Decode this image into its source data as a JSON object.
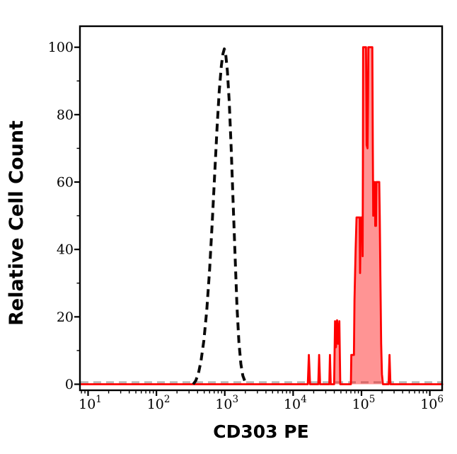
{
  "figure": {
    "background": "#ffffff",
    "x_axis": {
      "scale": "log10",
      "tick_base": "10",
      "major_tick_exponents": [
        1,
        2,
        3,
        4,
        5,
        6
      ],
      "minor_ticks": "2-9 per decade",
      "visible_range_exponents": [
        0.88,
        6.18
      ]
    },
    "y_axis": {
      "major_ticks": [
        0,
        20,
        40,
        60,
        80,
        100
      ],
      "minor_ticks": [
        10,
        30,
        50,
        70,
        90
      ]
    },
    "colors": {
      "axis": "#000000",
      "sample_stroke": "#ff0000",
      "sample_fill": "rgba(255,0,0,0.42)",
      "control_stroke": "#0a0a0a",
      "baseline_dash": "#b8b8b8"
    }
  },
  "chart_data": {
    "type": "area",
    "title": "",
    "xlabel": "CD303 PE",
    "ylabel": "Relative Cell Count",
    "x_scale": "log10",
    "xlim": [
      8,
      1520000
    ],
    "ylim": [
      0,
      100
    ],
    "grid": false,
    "legend": false,
    "series": [
      {
        "name": "cd303-pe-stained-sample",
        "description": "red solid line with light red fill, spiky positive population",
        "style": "solid-filled",
        "stroke": "#ff0000",
        "fill": "rgba(255,0,0,0.42)",
        "points": [
          [
            8,
            0
          ],
          [
            16400,
            0
          ],
          [
            17000,
            8.7
          ],
          [
            17700,
            0
          ],
          [
            23300,
            0
          ],
          [
            24000,
            8.7
          ],
          [
            24800,
            0
          ],
          [
            33800,
            0
          ],
          [
            34600,
            8.7
          ],
          [
            35500,
            0
          ],
          [
            39800,
            0
          ],
          [
            41000,
            18.7
          ],
          [
            42300,
            11
          ],
          [
            44000,
            19
          ],
          [
            45500,
            12
          ],
          [
            47500,
            18.7
          ],
          [
            49000,
            0
          ],
          [
            70000,
            0
          ],
          [
            71000,
            8.7
          ],
          [
            77500,
            8.7
          ],
          [
            79000,
            25
          ],
          [
            82000,
            40
          ],
          [
            84700,
            49.5
          ],
          [
            94000,
            49.5
          ],
          [
            95500,
            33
          ],
          [
            97700,
            49.5
          ],
          [
            102500,
            49.5
          ],
          [
            104000,
            38
          ],
          [
            105000,
            65
          ],
          [
            105700,
            100
          ],
          [
            116500,
            100
          ],
          [
            118000,
            85
          ],
          [
            119100,
            71
          ],
          [
            122500,
            70
          ],
          [
            124500,
            85
          ],
          [
            126000,
            100
          ],
          [
            144000,
            100
          ],
          [
            146500,
            70
          ],
          [
            148500,
            50
          ],
          [
            151400,
            60
          ],
          [
            157000,
            60
          ],
          [
            159000,
            47
          ],
          [
            163000,
            47
          ],
          [
            165500,
            60
          ],
          [
            181900,
            60
          ],
          [
            185000,
            50
          ],
          [
            189000,
            32
          ],
          [
            194000,
            12
          ],
          [
            199000,
            3
          ],
          [
            206000,
            0
          ],
          [
            249000,
            0
          ],
          [
            257000,
            8.7
          ],
          [
            265000,
            0
          ],
          [
            1520000,
            0
          ]
        ]
      },
      {
        "name": "control-dashed",
        "description": "black dashed bell-shaped negative control around 10^3",
        "style": "dashed",
        "stroke": "#0a0a0a",
        "fill": "none",
        "points": [
          [
            345,
            0
          ],
          [
            375,
            1
          ],
          [
            410,
            3
          ],
          [
            450,
            7
          ],
          [
            495,
            13
          ],
          [
            545,
            22
          ],
          [
            600,
            34
          ],
          [
            655,
            48
          ],
          [
            710,
            62
          ],
          [
            770,
            76
          ],
          [
            830,
            87
          ],
          [
            890,
            94.5
          ],
          [
            940,
            98
          ],
          [
            984,
            99.5
          ],
          [
            1030,
            98
          ],
          [
            1090,
            93
          ],
          [
            1160,
            84
          ],
          [
            1240,
            70
          ],
          [
            1330,
            53
          ],
          [
            1420,
            37
          ],
          [
            1510,
            23
          ],
          [
            1610,
            12.5
          ],
          [
            1720,
            6
          ],
          [
            1840,
            2.5
          ],
          [
            1960,
            1
          ],
          [
            2070,
            0
          ]
        ]
      }
    ]
  }
}
